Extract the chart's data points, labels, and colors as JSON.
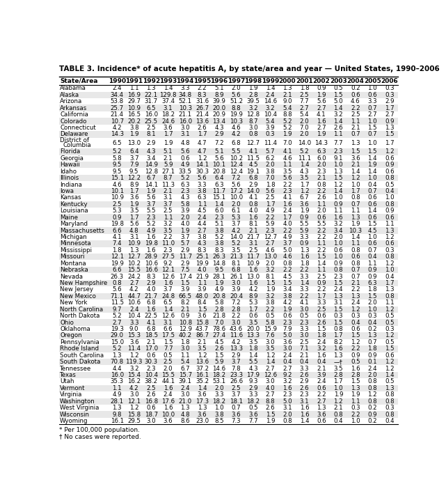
{
  "title": "TABLE 3. Incidence* of acute hepatitis A, by state/area and year — United States, 1990–2006",
  "columns": [
    "State/Area",
    "1990",
    "1991",
    "1992",
    "1993",
    "1994",
    "1995",
    "1996",
    "1997",
    "1998",
    "1999",
    "2000",
    "2001",
    "2002",
    "2003",
    "2004",
    "2005",
    "2006"
  ],
  "rows": [
    [
      "Alabama",
      "2.4",
      "1.1",
      "1.3",
      "1.4",
      "3.3",
      "2.2",
      "5.1",
      "2.0",
      "1.9",
      "1.4",
      "1.3",
      "1.8",
      "0.9",
      "0.5",
      "0.2",
      "1.0",
      "0.3"
    ],
    [
      "Alaska",
      "34.4",
      "16.9",
      "22.1",
      "129.8",
      "34.8",
      "8.3",
      "8.9",
      "5.6",
      "2.8",
      "2.4",
      "2.1",
      "2.5",
      "1.9",
      "1.5",
      "0.6",
      "0.6",
      "0.3"
    ],
    [
      "Arizona",
      "53.8",
      "29.7",
      "31.7",
      "37.4",
      "52.1",
      "31.6",
      "39.9",
      "51.2",
      "39.5",
      "14.6",
      "9.0",
      "7.7",
      "5.6",
      "5.0",
      "4.6",
      "3.3",
      "2.9"
    ],
    [
      "Arkansas",
      "25.7",
      "10.9",
      "6.5",
      "3.1",
      "10.3",
      "26.7",
      "20.0",
      "8.8",
      "3.2",
      "3.2",
      "5.4",
      "2.7",
      "2.7",
      "1.4",
      "2.2",
      "0.7",
      "1.7"
    ],
    [
      "California",
      "21.4",
      "16.5",
      "16.0",
      "18.2",
      "21.1",
      "21.4",
      "20.9",
      "19.9",
      "12.8",
      "10.4",
      "8.8",
      "5.4",
      "4.1",
      "3.2",
      "2.5",
      "2.7",
      "2.7"
    ],
    [
      "Colorado",
      "10.7",
      "20.2",
      "25.5",
      "24.6",
      "16.0",
      "13.6",
      "13.4",
      "10.3",
      "8.7",
      "5.4",
      "5.2",
      "2.0",
      "1.6",
      "1.4",
      "1.1",
      "1.0",
      "0.9"
    ],
    [
      "Connecticut",
      "4.2",
      "3.8",
      "2.5",
      "3.6",
      "3.0",
      "2.6",
      "4.3",
      "4.6",
      "3.0",
      "3.9",
      "5.2",
      "7.0",
      "2.7",
      "2.6",
      "2.1",
      "1.5",
      "1.3"
    ],
    [
      "Delaware",
      "14.3",
      "1.9",
      "8.1",
      "1.7",
      "3.1",
      "1.7",
      "2.9",
      "4.2",
      "0.8",
      "0.3",
      "1.9",
      "2.0",
      "1.9",
      "1.1",
      "0.7",
      "0.7",
      "1.5"
    ],
    [
      "District of\n  Columbia",
      "6.5",
      "13.0",
      "2.9",
      "1.9",
      "4.8",
      "4.7",
      "7.2",
      "6.8",
      "12.7",
      "11.4",
      "7.0",
      "14.0",
      "14.3",
      "7.7",
      "1.3",
      "1.0",
      "1.7"
    ],
    [
      "Florida",
      "5.2",
      "6.4",
      "4.3",
      "5.1",
      "5.6",
      "4.7",
      "5.1",
      "5.5",
      "4.1",
      "5.7",
      "4.1",
      "5.2",
      "6.3",
      "2.3",
      "1.5",
      "1.5",
      "1.2"
    ],
    [
      "Georgia",
      "5.8",
      "3.7",
      "3.4",
      "2.1",
      "0.6",
      "1.2",
      "5.6",
      "10.2",
      "11.5",
      "6.2",
      "4.6",
      "11.1",
      "6.0",
      "9.1",
      "3.6",
      "1.4",
      "0.6"
    ],
    [
      "Hawaii",
      "9.5",
      "7.9",
      "14.9",
      "5.9",
      "4.9",
      "14.1",
      "10.1",
      "12.4",
      "4.5",
      "2.0",
      "1.1",
      "1.4",
      "2.0",
      "1.0",
      "2.1",
      "1.9",
      "0.9"
    ],
    [
      "Idaho",
      "9.5",
      "9.5",
      "12.8",
      "27.1",
      "33.5",
      "30.3",
      "20.8",
      "12.4",
      "19.1",
      "3.8",
      "3.5",
      "4.3",
      "2.3",
      "1.3",
      "1.4",
      "1.4",
      "0.6"
    ],
    [
      "Illinois",
      "15.1",
      "12.2",
      "6.7",
      "8.7",
      "5.2",
      "5.6",
      "6.4",
      "7.2",
      "6.8",
      "7.0",
      "5.6",
      "3.5",
      "2.1",
      "1.5",
      "1.2",
      "1.0",
      "0.8"
    ],
    [
      "Indiana",
      "4.6",
      "8.9",
      "14.1",
      "11.3",
      "6.3",
      "3.3",
      "6.3",
      "5.6",
      "2.9",
      "1.8",
      "2.2",
      "1.7",
      "0.8",
      "1.2",
      "1.0",
      "0.4",
      "0.5"
    ],
    [
      "Iowa",
      "10.1",
      "1.7",
      "1.9",
      "2.1",
      "2.3",
      "3.8",
      "11.7",
      "17.2",
      "14.0",
      "5.6",
      "2.3",
      "1.2",
      "2.2",
      "1.4",
      "1.7",
      "0.7",
      "0.4"
    ],
    [
      "Kansas",
      "10.9",
      "3.6",
      "5.6",
      "3.1",
      "4.3",
      "6.3",
      "15.1",
      "10.0",
      "4.1",
      "2.5",
      "4.1",
      "6.7",
      "2.6",
      "1.0",
      "0.8",
      "0.6",
      "1.0"
    ],
    [
      "Kentucky",
      "2.5",
      "1.9",
      "3.7",
      "3.7",
      "5.8",
      "1.1",
      "1.4",
      "2.0",
      "0.8",
      "1.7",
      "1.6",
      "3.6",
      "1.1",
      "0.9",
      "0.7",
      "0.6",
      "0.8"
    ],
    [
      "Louisiana",
      "5.3",
      "3.5",
      "5.5",
      "2.5",
      "3.9",
      "4.5",
      "6.0",
      "6.1",
      "4.0",
      "4.9",
      "2.4",
      "1.9",
      "2.0",
      "1.1",
      "1.1",
      "1.4",
      "0.9"
    ],
    [
      "Maine",
      "0.9",
      "1.7",
      "2.3",
      "1.1",
      "2.0",
      "2.4",
      "2.3",
      "5.3",
      "1.6",
      "2.2",
      "1.7",
      "0.9",
      "0.6",
      "1.6",
      "1.3",
      "0.6",
      "0.6"
    ],
    [
      "Maryland",
      "19.8",
      "5.6",
      "5.2",
      "3.2",
      "4.0",
      "4.4",
      "5.1",
      "3.7",
      "8.1",
      "5.9",
      "4.0",
      "5.5",
      "5.5",
      "3.2",
      "1.9",
      "1.5",
      "1.1"
    ],
    [
      "Massachusetts",
      "6.6",
      "4.8",
      "4.9",
      "3.5",
      "1.9",
      "2.7",
      "3.8",
      "4.2",
      "2.1",
      "2.3",
      "2.2",
      "5.9",
      "2.2",
      "3.4",
      "10.3",
      "4.5",
      "1.3"
    ],
    [
      "Michigan",
      "4.1",
      "3.1",
      "1.6",
      "2.2",
      "3.7",
      "3.8",
      "5.2",
      "14.0",
      "21.7",
      "12.7",
      "4.9",
      "3.3",
      "2.2",
      "2.0",
      "1.4",
      "1.0",
      "1.2"
    ],
    [
      "Minnesota",
      "7.4",
      "10.9",
      "19.8",
      "11.0",
      "5.7",
      "4.3",
      "3.8",
      "5.2",
      "3.1",
      "2.7",
      "3.7",
      "0.9",
      "1.1",
      "1.0",
      "1.1",
      "0.6",
      "0.6"
    ],
    [
      "Mississippi",
      "1.8",
      "1.3",
      "1.6",
      "2.3",
      "2.9",
      "8.3",
      "8.3",
      "3.5",
      "2.5",
      "4.6",
      "5.0",
      "1.3",
      "2.2",
      "0.6",
      "0.8",
      "0.7",
      "0.3"
    ],
    [
      "Missouri",
      "12.1",
      "12.7",
      "28.9",
      "27.5",
      "11.7",
      "25.1",
      "26.3",
      "21.3",
      "11.7",
      "13.0",
      "4.6",
      "1.6",
      "1.5",
      "1.0",
      "0.6",
      "0.4",
      "0.8"
    ],
    [
      "Montana",
      "19.9",
      "10.2",
      "10.6",
      "9.2",
      "2.9",
      "19.9",
      "14.8",
      "8.1",
      "10.9",
      "2.0",
      "0.8",
      "1.8",
      "1.4",
      "0.9",
      "0.8",
      "1.1",
      "1.2"
    ],
    [
      "Nebraska",
      "6.6",
      "15.5",
      "16.6",
      "12.1",
      "7.5",
      "4.0",
      "9.5",
      "6.8",
      "1.6",
      "3.2",
      "2.2",
      "2.2",
      "1.1",
      "0.8",
      "0.7",
      "0.9",
      "1.0"
    ],
    [
      "Nevada",
      "26.3",
      "24.2",
      "8.3",
      "12.6",
      "17.4",
      "21.9",
      "28.1",
      "26.1",
      "13.0",
      "8.1",
      "4.5",
      "3.3",
      "2.5",
      "2.3",
      "0.7",
      "0.9",
      "0.4"
    ],
    [
      "New Hampshire",
      "0.8",
      "2.7",
      "2.9",
      "1.6",
      "1.5",
      "1.1",
      "1.9",
      "3.0",
      "1.6",
      "1.5",
      "1.5",
      "1.4",
      "0.9",
      "1.5",
      "2.1",
      "6.3",
      "1.7"
    ],
    [
      "New Jersey",
      "5.6",
      "4.2",
      "4.0",
      "3.7",
      "3.9",
      "3.9",
      "4.9",
      "3.9",
      "4.2",
      "1.9",
      "3.4",
      "3.3",
      "2.2",
      "2.4",
      "2.2",
      "1.8",
      "1.3"
    ],
    [
      "New Mexico",
      "71.1",
      "44.7",
      "21.7",
      "24.8",
      "66.5",
      "48.0",
      "20.8",
      "20.4",
      "8.9",
      "3.2",
      "3.8",
      "2.2",
      "1.7",
      "1.3",
      "1.3",
      "1.5",
      "0.8"
    ],
    [
      "New York",
      "11.5",
      "10.6",
      "6.8",
      "6.5",
      "8.2",
      "8.4",
      "5.8",
      "7.2",
      "5.3",
      "3.8",
      "4.2",
      "4.1",
      "3.3",
      "3.1",
      "2.4",
      "2.0",
      "1.1"
    ],
    [
      "North Carolina",
      "9.7",
      "2.4",
      "1.6",
      "1.4",
      "2.1",
      "1.5",
      "2.8",
      "2.8",
      "1.7",
      "2.2",
      "1.9",
      "3.0",
      "2.5",
      "1.5",
      "1.2",
      "1.0",
      "1.2"
    ],
    [
      "North Dakota",
      "5.2",
      "10.4",
      "22.5",
      "12.6",
      "0.9",
      "3.6",
      "21.8",
      "2.2",
      "0.6",
      "0.5",
      "0.6",
      "0.5",
      "0.6",
      "0.3",
      "0.3",
      "0.3",
      "0.5"
    ],
    [
      "Ohio",
      "2.7",
      "3.3",
      "4.1",
      "3.1",
      "10.8",
      "15.8",
      "7.0",
      "3.0",
      "3.5",
      "5.8",
      "2.3",
      "2.3",
      "2.6",
      "1.5",
      "0.4",
      "0.4",
      "0.5"
    ],
    [
      "Oklahoma",
      "19.3",
      "9.0",
      "6.8",
      "6.6",
      "12.9",
      "43.7",
      "78.6",
      "43.6",
      "20.0",
      "15.9",
      "7.9",
      "3.3",
      "1.5",
      "0.8",
      "0.6",
      "0.2",
      "0.3"
    ],
    [
      "Oregon",
      "29.0",
      "15.3",
      "18.5",
      "17.5",
      "40.2",
      "86.7",
      "27.4",
      "11.6",
      "13.3",
      "7.6",
      "5.0",
      "3.0",
      "1.8",
      "1.7",
      "1.5",
      "1.3",
      "1.2"
    ],
    [
      "Pennsylvania",
      "15.0",
      "3.6",
      "2.1",
      "1.5",
      "1.8",
      "2.1",
      "4.5",
      "4.2",
      "3.5",
      "3.0",
      "3.6",
      "2.5",
      "2.4",
      "8.2",
      "1.2",
      "0.7",
      "0.5"
    ],
    [
      "Rhode Island",
      "5.2",
      "11.4",
      "17.0",
      "7.7",
      "3.0",
      "3.5",
      "2.6",
      "13.3",
      "1.8",
      "3.5",
      "3.0",
      "7.1",
      "3.2",
      "1.6",
      "2.2",
      "1.8",
      "1.5"
    ],
    [
      "South Carolina",
      "1.3",
      "1.2",
      "0.6",
      "0.5",
      "1.1",
      "1.2",
      "1.5",
      "2.9",
      "1.4",
      "1.2",
      "2.4",
      "2.1",
      "1.6",
      "1.3",
      "0.9",
      "0.9",
      "0.6"
    ],
    [
      "South Dakota",
      "70.8",
      "119.3",
      "30.3",
      "2.5",
      "5.4",
      "13.6",
      "5.9",
      "3.7",
      "5.5",
      "1.4",
      "0.4",
      "0.4",
      "0.4",
      "—†",
      "0.5",
      "0.1",
      "1.2"
    ],
    [
      "Tennessee",
      "4.4",
      "3.2",
      "2.3",
      "2.0",
      "6.7",
      "37.2",
      "14.6",
      "7.8",
      "4.3",
      "2.7",
      "2.7",
      "3.3",
      "2.1",
      "3.5",
      "1.6",
      "2.4",
      "1.2"
    ],
    [
      "Texas",
      "16.0",
      "15.4",
      "10.4",
      "15.5",
      "15.7",
      "16.1",
      "18.2",
      "23.3",
      "17.9",
      "12.6",
      "9.2",
      "2.6",
      "3.9",
      "2.8",
      "2.8",
      "2.0",
      "1.4"
    ],
    [
      "Utah",
      "35.3",
      "16.2",
      "38.2",
      "44.1",
      "39.1",
      "35.2",
      "53.1",
      "26.6",
      "9.3",
      "3.0",
      "3.2",
      "2.9",
      "2.4",
      "1.7",
      "1.5",
      "0.8",
      "0.5"
    ],
    [
      "Vermont",
      "1.1",
      "4.2",
      "2.5",
      "1.6",
      "2.4",
      "1.4",
      "2.0",
      "2.5",
      "2.9",
      "4.0",
      "1.6",
      "2.6",
      "0.6",
      "1.0",
      "1.3",
      "0.8",
      "1.3"
    ],
    [
      "Virginia",
      "4.9",
      "3.0",
      "2.6",
      "2.4",
      "3.0",
      "3.6",
      "3.3",
      "3.7",
      "3.3",
      "2.7",
      "2.3",
      "2.3",
      "2.2",
      "1.9",
      "1.9",
      "1.2",
      "0.8"
    ],
    [
      "Washington",
      "28.1",
      "12.1",
      "16.8",
      "17.6",
      "21.0",
      "17.3",
      "18.2",
      "18.1",
      "18.2",
      "8.8",
      "5.0",
      "3.1",
      "2.7",
      "1.2",
      "1.1",
      "0.8",
      "0.8"
    ],
    [
      "West Virginia",
      "1.3",
      "1.2",
      "0.6",
      "1.6",
      "1.3",
      "1.3",
      "1.0",
      "0.7",
      "0.5",
      "2.6",
      "3.1",
      "1.6",
      "1.3",
      "2.1",
      "0.3",
      "0.2",
      "0.3"
    ],
    [
      "Wisconsin",
      "9.8",
      "15.8",
      "18.7",
      "10.0",
      "4.8",
      "3.6",
      "3.8",
      "3.6",
      "3.6",
      "1.5",
      "2.0",
      "1.6",
      "3.6",
      "0.8",
      "2.2",
      "0.9",
      "0.8"
    ],
    [
      "Wyoming",
      "16.1",
      "29.5",
      "3.0",
      "3.6",
      "8.6",
      "23.0",
      "8.5",
      "7.3",
      "7.7",
      "1.9",
      "0.8",
      "1.4",
      "0.6",
      "0.4",
      "1.0",
      "0.2",
      "0.4"
    ]
  ],
  "footnotes": [
    "* Per 100,000 population.",
    "† No cases were reported."
  ],
  "bg_color": "#ffffff",
  "alt_row_color": "#e8e8e8",
  "text_color": "#000000",
  "title_fontsize": 7.5,
  "header_fontsize": 6.5,
  "cell_fontsize": 6.2,
  "footnote_fontsize": 6.5
}
